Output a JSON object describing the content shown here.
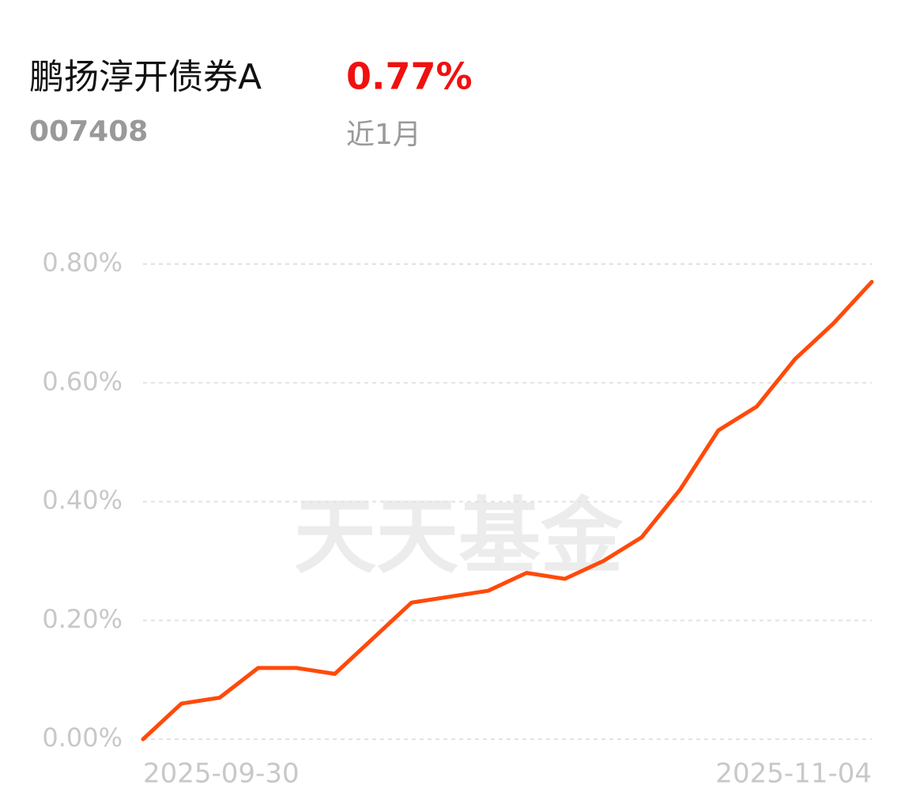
{
  "header": {
    "name": "鹏扬淳开债券A",
    "code": "007408",
    "return": "0.77%",
    "period": "近1月"
  },
  "watermark": "天天基金",
  "chart_data": {
    "type": "line",
    "categories": [
      "2025-09-30",
      null,
      null,
      null,
      null,
      null,
      null,
      null,
      null,
      null,
      null,
      null,
      null,
      null,
      null,
      null,
      null,
      null,
      null,
      "2025-11-04"
    ],
    "series": [
      {
        "color": "#ff4a0a",
        "values": [
          0.0,
          0.06,
          0.07,
          0.12,
          0.12,
          0.11,
          0.17,
          0.23,
          0.24,
          0.25,
          0.28,
          0.27,
          0.3,
          0.34,
          0.42,
          0.52,
          0.56,
          0.64,
          0.7,
          0.77
        ]
      }
    ],
    "ylim": [
      0,
      0.8
    ],
    "yticks": [
      {
        "value": 0,
        "label": "0.00%"
      },
      {
        "value": 0.2,
        "label": "0.20%"
      },
      {
        "value": 0.4,
        "label": "0.40%"
      },
      {
        "value": 0.6,
        "label": "0.60%"
      },
      {
        "value": 0.8,
        "label": "0.80%"
      }
    ],
    "grid": true
  }
}
